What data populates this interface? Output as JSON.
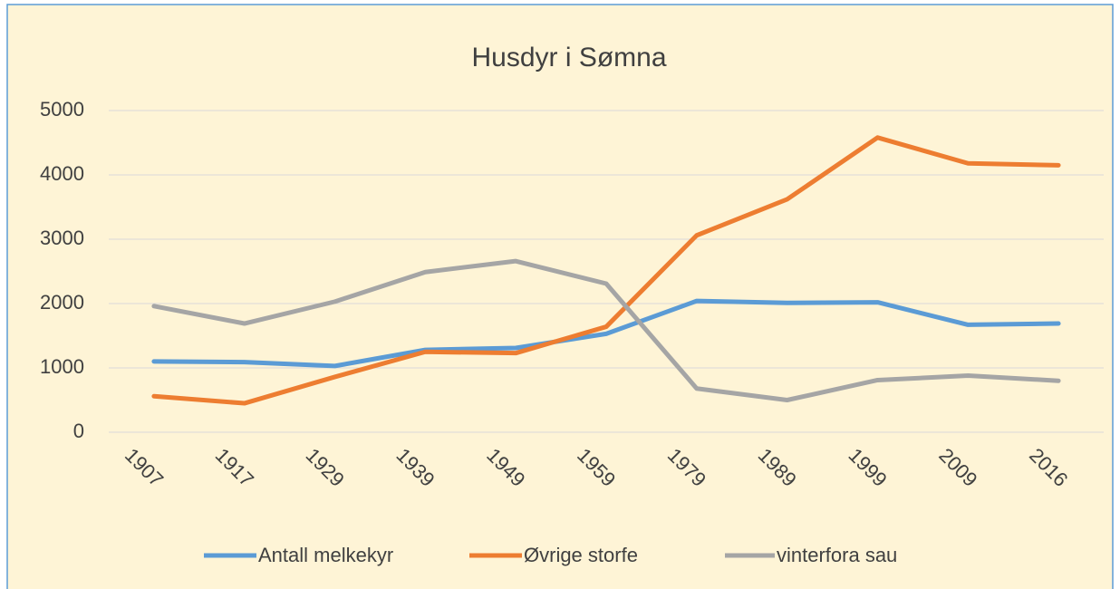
{
  "chart_data": {
    "type": "line",
    "title": "Husdyr i Sømna",
    "categories": [
      "1907",
      "1917",
      "1929",
      "1939",
      "1949",
      "1959",
      "1979",
      "1989",
      "1999",
      "2009",
      "2016"
    ],
    "series": [
      {
        "name": "Antall melkekyr",
        "color": "#5b9bd5",
        "values": [
          1100,
          1090,
          1030,
          1280,
          1310,
          1530,
          2040,
          2010,
          2020,
          1670,
          1690
        ]
      },
      {
        "name": "Øvrige storfe",
        "color": "#ed7d31",
        "values": [
          560,
          450,
          860,
          1250,
          1230,
          1640,
          3060,
          3620,
          4580,
          4180,
          4150
        ]
      },
      {
        "name": "vinterfora sau",
        "color": "#a5a5a5",
        "values": [
          1960,
          1690,
          2030,
          2490,
          2660,
          2310,
          680,
          500,
          810,
          880,
          800
        ]
      }
    ],
    "ylim": [
      0,
      5000
    ],
    "yticks": [
      0,
      1000,
      2000,
      3000,
      4000,
      5000
    ],
    "grid": true,
    "legend": "bottom"
  }
}
